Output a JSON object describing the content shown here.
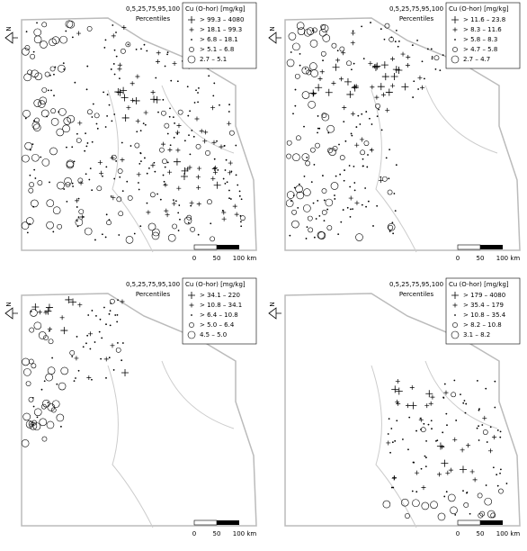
{
  "panels": [
    {
      "north": "N",
      "percentile_levels": "0,5,25,75,95,100",
      "percentiles_word": "Percentiles",
      "legend_title": "Cu (O-hor) [mg/kg]",
      "classes": [
        "> 99.3 –  4080",
        "> 18.1 –  99.3",
        "> 6.8 –  18.1",
        "> 5.1 –  6.8",
        "2.7 –  5.1"
      ],
      "scale": [
        "0",
        "50",
        "100 km"
      ]
    },
    {
      "north": "N",
      "percentile_levels": "0,5,25,75,95,100",
      "percentiles_word": "Percentiles",
      "legend_title": "Cu (O-hor) [mg/kg]",
      "classes": [
        "> 11.6 –  23.8",
        "> 8.3 –  11.6",
        "> 5.8 –  8.3",
        "> 4.7 –  5.8",
        "2.7 –  4.7"
      ],
      "scale": [
        "0",
        "50",
        "100 km"
      ]
    },
    {
      "north": "N",
      "percentile_levels": "0,5,25,75,95,100",
      "percentiles_word": "Percentiles",
      "legend_title": "Cu (O-hor) [mg/kg]",
      "classes": [
        "> 34.1 –  220",
        "> 10.8 –  34.1",
        "> 6.4 –  10.8",
        "> 5.0 –  6.4",
        "4.5 –  5.0"
      ],
      "scale": [
        "0",
        "50",
        "100 km"
      ]
    },
    {
      "north": "N",
      "percentile_levels": "0,5,25,75,95,100",
      "percentiles_word": "Percentiles",
      "legend_title": "Cu (O-hor) [mg/kg]",
      "classes": [
        "> 179 –  4080",
        "> 35.4 –  179",
        "> 10.8 –  35.4",
        "> 8.2 –  10.8",
        "3.1 –  8.2"
      ],
      "scale": [
        "0",
        "50",
        "100 km"
      ]
    }
  ]
}
